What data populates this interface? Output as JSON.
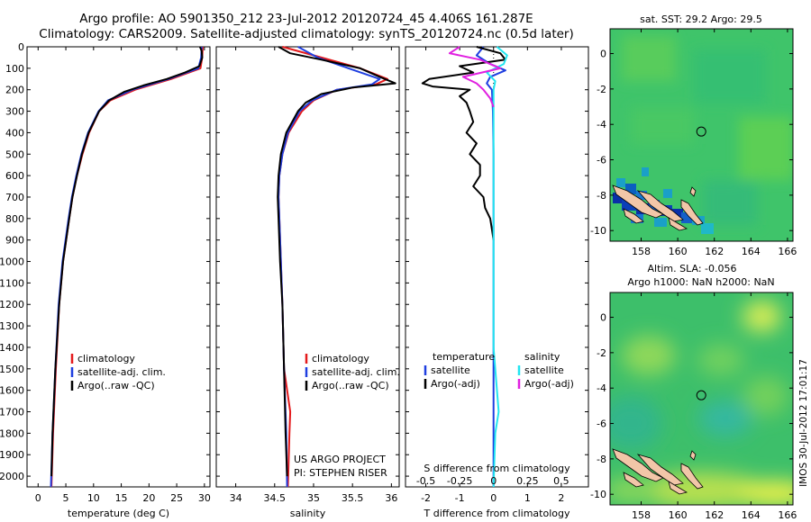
{
  "header": {
    "line1": "Argo profile: AO 5901350_212 23-Jul-2012 20120724_45 4.406S 161.287E",
    "line2": "Climatology: CARS2009. Satellite-adjusted climatology: synTS_20120724.nc (0.5d later)"
  },
  "side_stamp": "IMOS 30-Jul-2012 17:01:17",
  "colors": {
    "climatology": "#e41a1c",
    "satellite": "#1f3fe0",
    "argo": "#000000",
    "sat_salinity": "#22e5f0",
    "argo_salinity": "#e020e0"
  },
  "chart_data": [
    {
      "type": "line",
      "panel": "temperature",
      "xlabel": "temperature (deg C)",
      "ylabel": "",
      "xlim": [
        -2,
        31
      ],
      "ylim": [
        2050,
        0
      ],
      "x_ticks": [
        0,
        5,
        10,
        15,
        20,
        25,
        30
      ],
      "y_ticks": [
        0,
        100,
        200,
        300,
        400,
        500,
        600,
        700,
        800,
        900,
        1000,
        1100,
        1200,
        1300,
        1400,
        1500,
        1600,
        1700,
        1800,
        1900,
        2000
      ],
      "legend": [
        "climatology",
        "satellite-adj. clim.",
        "Argo(..raw -QC)"
      ],
      "series": [
        {
          "name": "climatology",
          "depth": [
            0,
            50,
            100,
            150,
            200,
            250,
            300,
            400,
            500,
            600,
            700,
            800,
            1000,
            1200,
            1500,
            1800,
            2050
          ],
          "values": [
            29.7,
            29.6,
            29.3,
            24,
            17.5,
            13,
            11,
            9.2,
            8,
            7,
            6.2,
            5.6,
            4.5,
            3.8,
            3.2,
            2.7,
            2.4
          ]
        },
        {
          "name": "satellite-adj. clim.",
          "depth": [
            0,
            50,
            100,
            150,
            200,
            250,
            300,
            400,
            500,
            600,
            700,
            800,
            1000,
            1200,
            1500,
            1800,
            2050
          ],
          "values": [
            29.5,
            29.4,
            28.9,
            23.5,
            17,
            12.6,
            10.9,
            9,
            7.8,
            6.9,
            6.1,
            5.5,
            4.4,
            3.7,
            3.1,
            2.6,
            2.3
          ]
        },
        {
          "name": "Argo(..raw -QC)",
          "depth": [
            0,
            20,
            50,
            90,
            120,
            150,
            180,
            210,
            250,
            300,
            400,
            500,
            600,
            700,
            800,
            1000,
            1200,
            1500,
            1800,
            2000
          ],
          "values": [
            29.2,
            29.5,
            29.6,
            29.1,
            26.5,
            23.2,
            19,
            15.5,
            12.8,
            11,
            9.1,
            7.9,
            7,
            6.2,
            5.6,
            4.5,
            3.8,
            3.1,
            2.6,
            2.4
          ]
        }
      ]
    },
    {
      "type": "line",
      "panel": "salinity",
      "xlabel": "salinity",
      "ylabel": "",
      "xlim": [
        33.75,
        36.1
      ],
      "ylim": [
        2050,
        0
      ],
      "x_ticks": [
        34,
        34.5,
        35,
        35.5,
        36
      ],
      "legend": [
        "climatology",
        "satellite-adj. clim.",
        "Argo(..raw -QC)"
      ],
      "annotations": [
        "US ARGO PROJECT",
        "PI: STEPHEN RISER"
      ],
      "series": [
        {
          "name": "climatology",
          "depth": [
            0,
            50,
            100,
            150,
            175,
            200,
            250,
            300,
            400,
            500,
            600,
            700,
            800,
            1000,
            1200,
            1500,
            1700,
            1800,
            2050
          ],
          "values": [
            34.6,
            35.1,
            35.6,
            35.95,
            35.8,
            35.3,
            35,
            34.85,
            34.68,
            34.6,
            34.56,
            34.55,
            34.56,
            34.58,
            34.6,
            34.62,
            34.7,
            34.69,
            34.67
          ]
        },
        {
          "name": "satellite-adj. clim.",
          "depth": [
            0,
            50,
            100,
            150,
            175,
            200,
            250,
            300,
            400,
            500,
            600,
            700,
            800,
            1000,
            1200,
            1500,
            1800,
            2050
          ],
          "values": [
            34.8,
            35.05,
            35.45,
            35.85,
            35.75,
            35.3,
            34.98,
            34.82,
            34.67,
            34.6,
            34.56,
            34.55,
            34.56,
            34.58,
            34.6,
            34.62,
            34.65,
            34.66
          ]
        },
        {
          "name": "Argo(..raw -QC)",
          "depth": [
            0,
            30,
            60,
            100,
            140,
            170,
            190,
            220,
            260,
            300,
            400,
            500,
            600,
            700,
            800,
            1000,
            1200,
            1500,
            1800,
            2000
          ],
          "values": [
            34.55,
            34.7,
            35.1,
            35.6,
            35.85,
            36.05,
            35.5,
            35.1,
            34.9,
            34.8,
            34.65,
            34.58,
            34.55,
            34.54,
            34.55,
            34.57,
            34.6,
            34.62,
            34.64,
            34.66
          ]
        }
      ]
    },
    {
      "type": "line",
      "panel": "differences",
      "xlabel": "T difference from climatology",
      "ylabel": "",
      "xlim": [
        -2.6,
        2.8
      ],
      "ylim": [
        2050,
        0
      ],
      "x_ticks": [
        -2,
        -1,
        0,
        1,
        2
      ],
      "s_ticks": [
        -0.5,
        -0.25,
        0,
        0.25,
        0.5
      ],
      "s_label": "S difference from climatology",
      "legend_headers": [
        "temperature",
        "salinity"
      ],
      "legend": [
        "satellite",
        "Argo(-adj)",
        "satellite",
        "Argo(-adj)"
      ],
      "series": [
        {
          "name": "satellite",
          "group": "temperature",
          "depth": [
            0,
            40,
            80,
            110,
            140,
            170,
            200,
            300,
            500,
            800,
            1200,
            1600,
            2050
          ],
          "values": [
            -0.3,
            -0.5,
            -0.1,
            0.35,
            -0.1,
            -0.2,
            -0.05,
            -0.02,
            0,
            0,
            0,
            0,
            0
          ]
        },
        {
          "name": "Argo(-adj)",
          "group": "temperature",
          "depth": [
            0,
            30,
            60,
            90,
            120,
            150,
            170,
            185,
            200,
            230,
            260,
            300,
            350,
            400,
            450,
            500,
            550,
            600,
            650,
            700,
            750,
            800,
            850,
            900
          ],
          "values": [
            -0.5,
            0.2,
            0.35,
            -1.0,
            -0.6,
            -1.9,
            -2.1,
            -1.8,
            -0.7,
            -1.0,
            -0.8,
            -0.7,
            -0.6,
            -0.8,
            -0.5,
            -0.7,
            -0.4,
            -0.4,
            -0.6,
            -0.3,
            -0.25,
            -0.1,
            -0.05,
            0
          ]
        },
        {
          "name": "satellite",
          "group": "salinity",
          "depth": [
            0,
            40,
            80,
            120,
            160,
            200,
            260,
            400,
            600,
            1000,
            1400,
            1700,
            1800,
            2050
          ],
          "values": [
            0.1,
            0.4,
            0.3,
            -0.2,
            0.05,
            0,
            0,
            0,
            0,
            0,
            0,
            0.15,
            0.05,
            0
          ]
        },
        {
          "name": "Argo(-adj)",
          "group": "salinity",
          "depth": [
            0,
            30,
            60,
            100,
            140,
            170,
            200,
            240,
            280
          ],
          "values": [
            -1.0,
            -1.3,
            -0.4,
            0.2,
            -0.9,
            -0.5,
            -0.3,
            -0.1,
            0
          ]
        }
      ]
    },
    {
      "type": "heatmap",
      "panel": "sst-map",
      "title": "sat. SST: 29.2 Argo: 29.5",
      "x_ticks": [
        158,
        160,
        162,
        164,
        166
      ],
      "y_ticks": [
        0,
        -2,
        -4,
        -6,
        -8,
        -10
      ],
      "xlim": [
        156.3,
        166.3
      ],
      "ylim": [
        -10.6,
        1.4
      ],
      "argo_position": {
        "lon": 161.287,
        "lat": -4.406
      }
    },
    {
      "type": "heatmap",
      "panel": "sla-map",
      "title": "Altim. SLA: -0.056",
      "subtitle": "Argo h1000: NaN h2000: NaN",
      "x_ticks": [
        158,
        160,
        162,
        164,
        166
      ],
      "y_ticks": [
        0,
        -2,
        -4,
        -6,
        -8,
        -10
      ],
      "xlim": [
        156.3,
        166.3
      ],
      "ylim": [
        -10.6,
        1.4
      ],
      "argo_position": {
        "lon": 161.287,
        "lat": -4.406
      }
    }
  ]
}
